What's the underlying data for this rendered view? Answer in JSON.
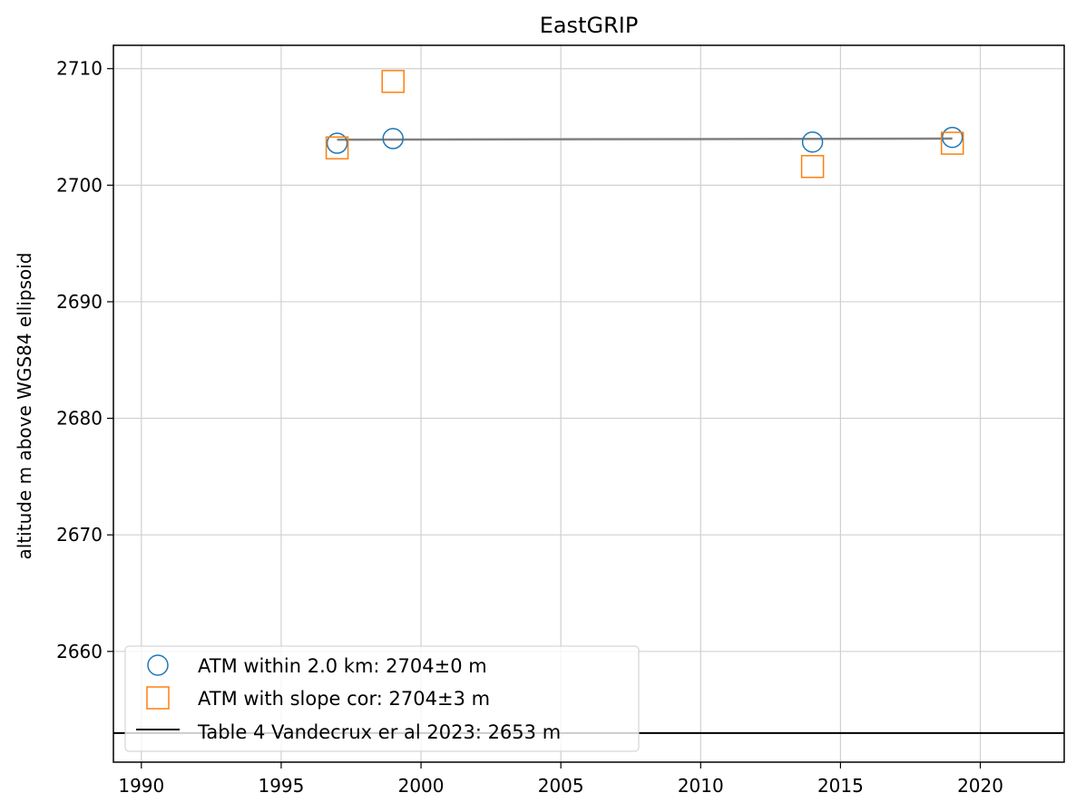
{
  "chart_data": {
    "type": "scatter",
    "title": "EastGRIP",
    "xlabel": "",
    "ylabel": "altitude m above WGS84 ellipsoid",
    "xlim": [
      1989,
      2023
    ],
    "ylim": [
      2650.5,
      2712
    ],
    "xticks": [
      1990,
      1995,
      2000,
      2005,
      2010,
      2015,
      2020
    ],
    "yticks": [
      2660,
      2670,
      2680,
      2690,
      2700,
      2710
    ],
    "grid": true,
    "legend_position": "lower-left",
    "series": [
      {
        "name": "ATM within 2.0 km: 2704±0 m",
        "marker": "circle",
        "color": "#1f77b4",
        "x": [
          1997,
          1999,
          2014,
          2019
        ],
        "y": [
          2703.6,
          2704.0,
          2703.7,
          2704.1
        ]
      },
      {
        "name": "ATM with slope cor: 2704±3 m",
        "marker": "square",
        "color": "#ff7f0e",
        "x": [
          1997,
          1999,
          2014,
          2019
        ],
        "y": [
          2703.2,
          2708.9,
          2701.6,
          2703.6
        ]
      }
    ],
    "trend_line": {
      "color": "#808080",
      "x": [
        1997,
        2019
      ],
      "y": [
        2703.9,
        2704.0
      ]
    },
    "reference_line": {
      "name": "Table 4 Vandecrux er al 2023: 2653 m",
      "color": "#000000",
      "y": 2653
    }
  }
}
